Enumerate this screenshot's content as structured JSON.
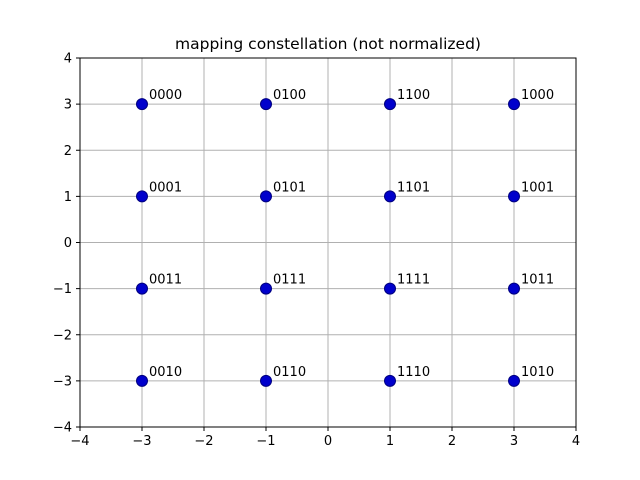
{
  "chart_data": {
    "type": "scatter",
    "title": "mapping constellation (not normalized)",
    "xlabel": "",
    "ylabel": "",
    "xlim": [
      -4,
      4
    ],
    "ylim": [
      -4,
      4
    ],
    "xticks": [
      "−4",
      "−3",
      "−2",
      "−1",
      "0",
      "1",
      "2",
      "3",
      "4"
    ],
    "yticks": [
      "−4",
      "−3",
      "−2",
      "−1",
      "0",
      "1",
      "2",
      "3",
      "4"
    ],
    "grid": true,
    "marker_color": "#0000cc",
    "marker_edge_color": "#000080",
    "grid_color": "#b0b0b0",
    "points": [
      {
        "x": -3,
        "y": 3,
        "label": "0000"
      },
      {
        "x": -1,
        "y": 3,
        "label": "0100"
      },
      {
        "x": 1,
        "y": 3,
        "label": "1100"
      },
      {
        "x": 3,
        "y": 3,
        "label": "1000"
      },
      {
        "x": -3,
        "y": 1,
        "label": "0001"
      },
      {
        "x": -1,
        "y": 1,
        "label": "0101"
      },
      {
        "x": 1,
        "y": 1,
        "label": "1101"
      },
      {
        "x": 3,
        "y": 1,
        "label": "1001"
      },
      {
        "x": -3,
        "y": -1,
        "label": "0011"
      },
      {
        "x": -1,
        "y": -1,
        "label": "0111"
      },
      {
        "x": 1,
        "y": -1,
        "label": "1111"
      },
      {
        "x": 3,
        "y": -1,
        "label": "1011"
      },
      {
        "x": -3,
        "y": -3,
        "label": "0010"
      },
      {
        "x": -1,
        "y": -3,
        "label": "0110"
      },
      {
        "x": 1,
        "y": -3,
        "label": "1110"
      },
      {
        "x": 3,
        "y": -3,
        "label": "1010"
      }
    ]
  }
}
